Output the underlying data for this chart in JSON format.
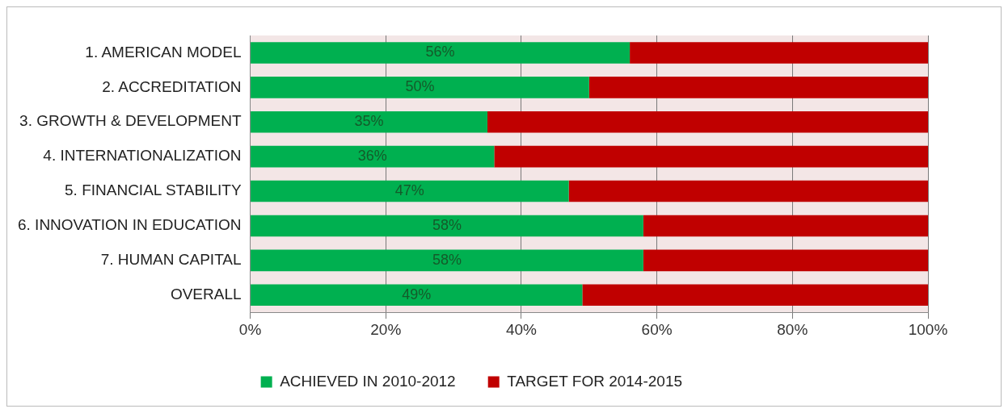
{
  "chart_data": {
    "type": "bar",
    "orientation": "horizontal",
    "stacked": true,
    "categories": [
      "1. AMERICAN MODEL",
      "2. ACCREDITATION",
      "3. GROWTH & DEVELOPMENT",
      "4. INTERNATIONALIZATION",
      "5. FINANCIAL STABILITY",
      "6. INNOVATION IN EDUCATION",
      "7. HUMAN CAPITAL",
      "OVERALL"
    ],
    "series": [
      {
        "name": "ACHIEVED IN 2010-2012",
        "color": "#00b050",
        "values": [
          56,
          50,
          35,
          36,
          47,
          58,
          58,
          49
        ],
        "value_labels": [
          "56%",
          "50%",
          "35%",
          "36%",
          "47%",
          "58%",
          "58%",
          "49%"
        ]
      },
      {
        "name": "TARGET FOR 2014-2015",
        "color": "#c00000",
        "values": [
          44,
          50,
          65,
          64,
          53,
          42,
          42,
          51
        ]
      }
    ],
    "xlim": [
      0,
      100
    ],
    "xticks": [
      {
        "value": 0,
        "label": "0%"
      },
      {
        "value": 20,
        "label": "20%"
      },
      {
        "value": 40,
        "label": "40%"
      },
      {
        "value": 60,
        "label": "60%"
      },
      {
        "value": 80,
        "label": "80%"
      },
      {
        "value": 100,
        "label": "100%"
      }
    ],
    "grid": "x",
    "legend": "bottom"
  }
}
